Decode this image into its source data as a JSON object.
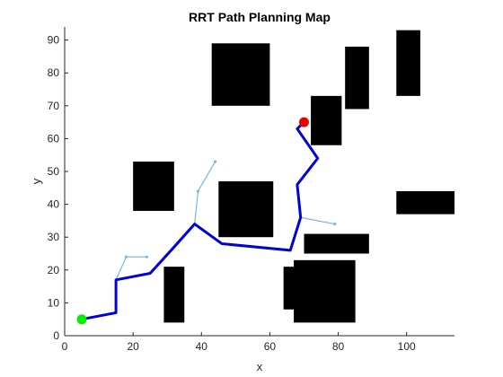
{
  "chart_data": {
    "type": "scatter",
    "title": "RRT Path Planning Map",
    "xlabel": "x",
    "ylabel": "y",
    "xlim": [
      0,
      114
    ],
    "ylim": [
      0,
      94
    ],
    "xticks": [
      "0",
      "20",
      "40",
      "60",
      "80",
      "100"
    ],
    "yticks": [
      "0",
      "10",
      "20",
      "30",
      "40",
      "50",
      "60",
      "70",
      "80",
      "90"
    ],
    "grid": false,
    "legend": "none",
    "colors": {
      "obstacle": "#000000",
      "path": "#0000d9",
      "tree": "#77b6e8",
      "start": "#00ee00",
      "goal": "#ee0000"
    },
    "obstacles": [
      {
        "x": [
          43,
          60
        ],
        "y": [
          70,
          89
        ]
      },
      {
        "x": [
          82,
          89
        ],
        "y": [
          69,
          88
        ]
      },
      {
        "x": [
          97,
          104
        ],
        "y": [
          73,
          93
        ]
      },
      {
        "x": [
          72,
          81
        ],
        "y": [
          58,
          73
        ]
      },
      {
        "x": [
          20,
          32
        ],
        "y": [
          38,
          53
        ]
      },
      {
        "x": [
          45,
          61
        ],
        "y": [
          30,
          47
        ]
      },
      {
        "x": [
          97,
          114
        ],
        "y": [
          37,
          44
        ]
      },
      {
        "x": [
          70,
          89
        ],
        "y": [
          25,
          31
        ]
      },
      {
        "x": [
          29,
          35
        ],
        "y": [
          4,
          21
        ]
      },
      {
        "x": [
          67,
          85
        ],
        "y": [
          4,
          23
        ]
      },
      {
        "x": [
          64,
          70
        ],
        "y": [
          8,
          21
        ]
      }
    ],
    "tree_segments": [
      [
        [
          15,
          17
        ],
        [
          18,
          24
        ]
      ],
      [
        [
          18,
          24
        ],
        [
          24,
          24
        ]
      ],
      [
        [
          38,
          34
        ],
        [
          39,
          44
        ]
      ],
      [
        [
          39,
          44
        ],
        [
          44,
          53
        ]
      ],
      [
        [
          69,
          36
        ],
        [
          79,
          34
        ]
      ]
    ],
    "path": {
      "x": [
        5,
        15,
        15,
        25,
        32,
        38,
        46,
        66,
        69,
        68,
        74,
        68,
        70
      ],
      "y": [
        5,
        7,
        17,
        19,
        27,
        34,
        28,
        26,
        36,
        46,
        54,
        63,
        65
      ]
    },
    "start": {
      "x": 5,
      "y": 5
    },
    "goal": {
      "x": 70,
      "y": 65
    }
  }
}
